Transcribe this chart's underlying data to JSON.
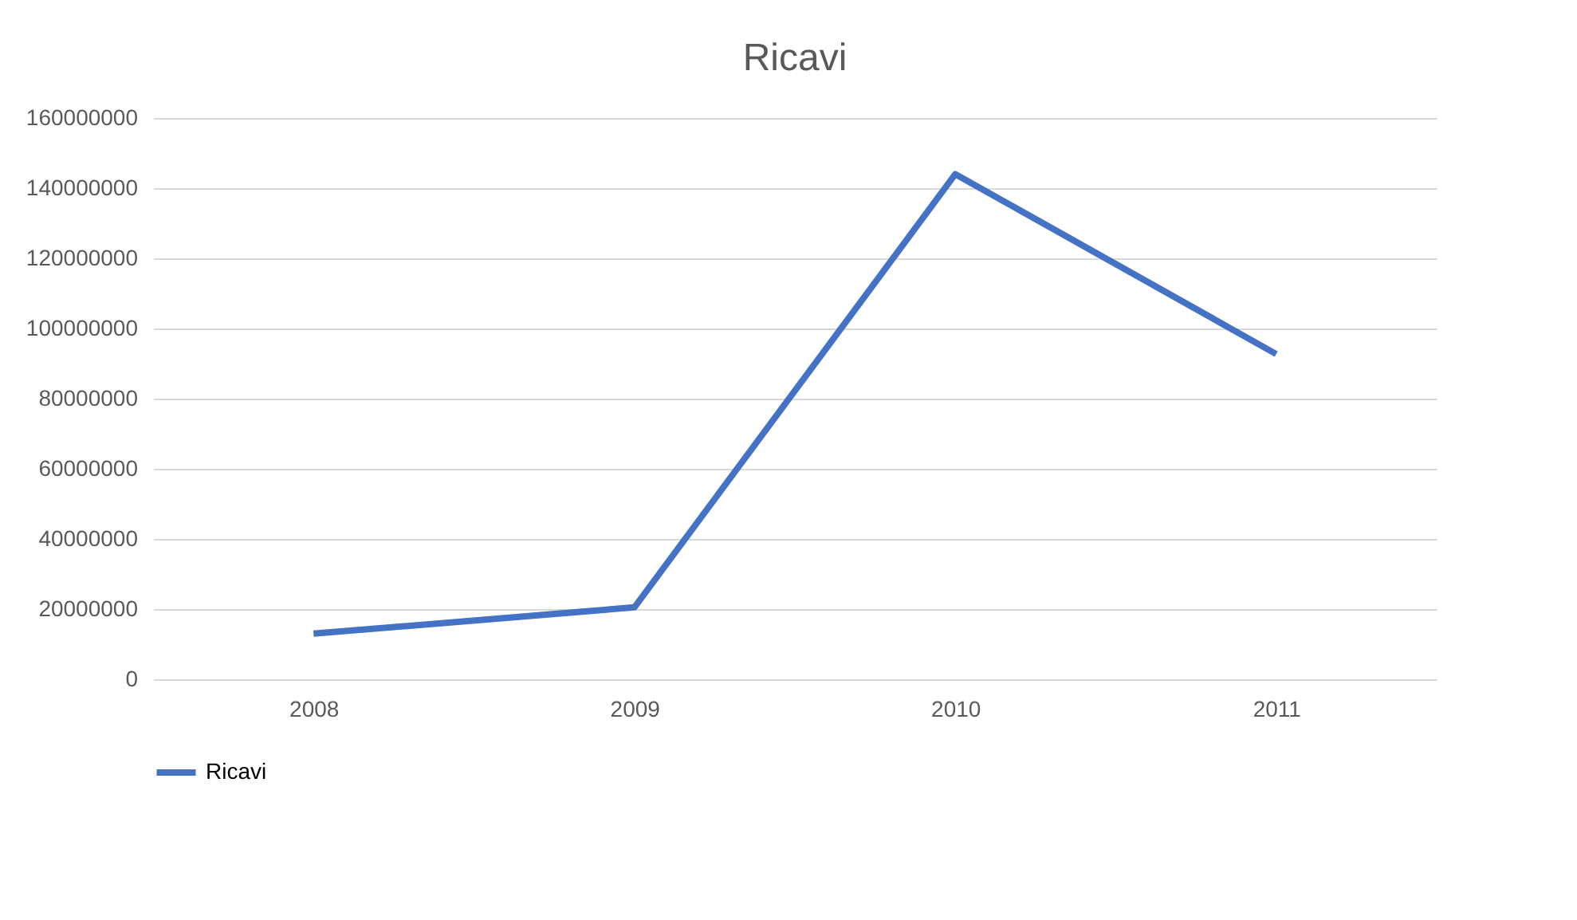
{
  "chart_data": {
    "type": "line",
    "title": "Ricavi",
    "categories": [
      "2008",
      "2009",
      "2010",
      "2011"
    ],
    "series": [
      {
        "name": "Ricavi",
        "color": "#4472c4",
        "values": [
          13000000,
          20500000,
          144000000,
          92700000
        ]
      }
    ],
    "ylim": [
      0,
      160000000
    ],
    "yticks": [
      0,
      20000000,
      40000000,
      60000000,
      80000000,
      100000000,
      120000000,
      140000000,
      160000000
    ],
    "grid": "y",
    "legend": "bottom",
    "marker": "none",
    "line_style": "solid"
  }
}
